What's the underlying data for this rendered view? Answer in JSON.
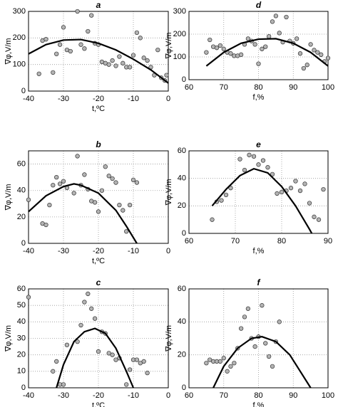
{
  "chart_data": [
    {
      "type": "scatter",
      "title": "a",
      "x_label": "t,ºC",
      "y_label": "∇φ,V/m",
      "xlim": [
        -40,
        0
      ],
      "ylim": [
        0,
        300
      ],
      "xticks": [
        -40,
        -30,
        -20,
        -10,
        0
      ],
      "yticks": [
        0,
        100,
        200,
        300
      ],
      "grid": true,
      "series": [
        {
          "type": "scatter",
          "color": "#b4b4b4",
          "x": [
            -37,
            -36,
            -35,
            -33,
            -32,
            -31,
            -30,
            -29,
            -28,
            -26,
            -25,
            -24,
            -23,
            -22,
            -21,
            -20,
            -19,
            -18,
            -17,
            -16,
            -15,
            -14,
            -13,
            -12,
            -11,
            -10,
            -9,
            -8,
            -7,
            -6,
            -5,
            -4,
            -3,
            -2,
            -1,
            -0.5
          ],
          "y": [
            65,
            190,
            195,
            70,
            140,
            175,
            240,
            155,
            150,
            300,
            175,
            160,
            225,
            285,
            180,
            175,
            110,
            105,
            100,
            115,
            95,
            130,
            105,
            90,
            90,
            135,
            220,
            200,
            125,
            115,
            90,
            60,
            155,
            50,
            40,
            60
          ]
        },
        {
          "type": "line",
          "color": "#000000",
          "x": [
            -40,
            -35,
            -30,
            -25,
            -20,
            -15,
            -10,
            -5,
            0
          ],
          "y": [
            140,
            175,
            192,
            194,
            180,
            155,
            120,
            80,
            30
          ]
        }
      ]
    },
    {
      "type": "scatter",
      "title": "d",
      "x_label": "f,%",
      "y_label": "∇φ,V/m",
      "xlim": [
        60,
        100
      ],
      "ylim": [
        0,
        300
      ],
      "xticks": [
        60,
        70,
        80,
        90,
        100
      ],
      "yticks": [
        0,
        100,
        200,
        300
      ],
      "grid": true,
      "series": [
        {
          "type": "scatter",
          "color": "#b4b4b4",
          "x": [
            65,
            66,
            67,
            68,
            69,
            70,
            71,
            72,
            73,
            74,
            75,
            76,
            77,
            78,
            79,
            80,
            81,
            82,
            83,
            84,
            85,
            86,
            87,
            88,
            89,
            90,
            91,
            92,
            93,
            94,
            95,
            96,
            97,
            98,
            99,
            100
          ],
          "y": [
            120,
            175,
            145,
            140,
            150,
            135,
            120,
            115,
            105,
            105,
            110,
            155,
            180,
            170,
            155,
            70,
            135,
            145,
            190,
            255,
            280,
            205,
            165,
            275,
            170,
            160,
            180,
            115,
            50,
            65,
            155,
            130,
            120,
            110,
            80,
            95
          ]
        },
        {
          "type": "line",
          "color": "#000000",
          "x": [
            65,
            70,
            75,
            80,
            85,
            90,
            95,
            100
          ],
          "y": [
            60,
            120,
            160,
            178,
            180,
            160,
            120,
            60
          ]
        }
      ]
    },
    {
      "type": "scatter",
      "title": "b",
      "x_label": "t,ºC",
      "y_label": "∇φ,V/m",
      "xlim": [
        -40,
        0
      ],
      "ylim": [
        0,
        70
      ],
      "xticks": [
        -40,
        -30,
        -20,
        -10,
        0
      ],
      "yticks": [
        0,
        20,
        40,
        60
      ],
      "grid": true,
      "series": [
        {
          "type": "scatter",
          "color": "#b4b4b4",
          "x": [
            -40,
            -36,
            -35,
            -34,
            -33,
            -32,
            -31,
            -30,
            -29,
            -27,
            -26,
            -25,
            -24,
            -23,
            -22,
            -21,
            -20,
            -19,
            -18,
            -17,
            -16,
            -15,
            -14,
            -13,
            -12,
            -11,
            -10,
            -9
          ],
          "y": [
            33,
            15,
            14,
            29,
            44,
            50,
            45,
            47,
            42,
            38,
            66,
            44,
            52,
            41,
            32,
            31,
            24,
            40,
            58,
            51,
            49,
            46,
            29,
            25,
            9,
            29,
            48,
            46
          ]
        },
        {
          "type": "line",
          "color": "#000000",
          "x": [
            -40,
            -35,
            -30,
            -27,
            -25,
            -20,
            -15,
            -12,
            -9
          ],
          "y": [
            24,
            36,
            43,
            45,
            44,
            38,
            25,
            13,
            0
          ]
        }
      ]
    },
    {
      "type": "scatter",
      "title": "e",
      "x_label": "f,%",
      "y_label": "∇φ,V/m",
      "xlim": [
        60,
        90
      ],
      "ylim": [
        0,
        60
      ],
      "xticks": [
        60,
        70,
        80,
        90
      ],
      "yticks": [
        0,
        20,
        40,
        60
      ],
      "grid": true,
      "series": [
        {
          "type": "scatter",
          "color": "#b4b4b4",
          "x": [
            65,
            66,
            67,
            68,
            69,
            71,
            72,
            73,
            74,
            75,
            76,
            77,
            78,
            79,
            80,
            81,
            82,
            83,
            84,
            85,
            86,
            87,
            88,
            89
          ],
          "y": [
            10,
            23,
            24,
            28,
            33,
            54,
            46,
            57,
            56,
            50,
            53,
            48,
            43,
            29,
            30,
            31,
            33,
            38,
            31,
            36,
            22,
            12,
            10,
            32
          ]
        },
        {
          "type": "line",
          "color": "#000000",
          "x": [
            65,
            68,
            71,
            74,
            77,
            80,
            83,
            86,
            86.5
          ],
          "y": [
            20,
            32,
            42,
            47,
            44,
            34,
            20,
            3,
            0
          ]
        }
      ]
    },
    {
      "type": "scatter",
      "title": "c",
      "x_label": "t,ºC",
      "y_label": "∇φ,V/m",
      "xlim": [
        -40,
        0
      ],
      "ylim": [
        0,
        60
      ],
      "xticks": [
        -40,
        -30,
        -20,
        -10,
        0
      ],
      "yticks": [
        0,
        10,
        20,
        30,
        40,
        50,
        60
      ],
      "grid": true,
      "series": [
        {
          "type": "scatter",
          "color": "#b4b4b4",
          "x": [
            -40,
            -33,
            -32,
            -31,
            -30,
            -29,
            -26,
            -25,
            -24,
            -23,
            -22,
            -21,
            -20,
            -19,
            -18,
            -17,
            -16,
            -15,
            -14,
            -12,
            -11,
            -10,
            -9,
            -8,
            -7,
            -6
          ],
          "y": [
            55,
            10,
            16,
            2,
            2,
            26,
            28,
            38,
            52,
            57,
            48,
            42,
            22,
            34,
            33,
            21,
            20,
            17,
            18,
            2,
            11,
            17,
            17,
            15,
            16,
            9
          ]
        },
        {
          "type": "line",
          "color": "#000000",
          "x": [
            -32,
            -30,
            -27,
            -24,
            -21,
            -18,
            -15,
            -12,
            -10
          ],
          "y": [
            0,
            14,
            28,
            34,
            36,
            33,
            24,
            10,
            0
          ]
        }
      ]
    },
    {
      "type": "scatter",
      "title": "f",
      "x_label": "f,%",
      "y_label": "∇φ,V/m",
      "xlim": [
        60,
        100
      ],
      "ylim": [
        0,
        60
      ],
      "xticks": [
        60,
        70,
        80,
        90,
        100
      ],
      "yticks": [
        0,
        20,
        40,
        60
      ],
      "grid": true,
      "series": [
        {
          "type": "scatter",
          "color": "#b4b4b4",
          "x": [
            65,
            66,
            67,
            68,
            69,
            70,
            71,
            72,
            73,
            74,
            75,
            76,
            77,
            78,
            79,
            80,
            81,
            82,
            83,
            84,
            85,
            86
          ],
          "y": [
            15,
            17,
            16,
            16,
            16,
            18,
            10,
            13,
            15,
            24,
            36,
            43,
            48,
            30,
            25,
            31,
            50,
            27,
            19,
            13,
            28,
            40
          ]
        },
        {
          "type": "line",
          "color": "#000000",
          "x": [
            67,
            70,
            74,
            78,
            81,
            85,
            89,
            92,
            95
          ],
          "y": [
            0,
            13,
            24,
            30,
            31,
            28,
            20,
            10,
            0
          ]
        }
      ]
    }
  ]
}
